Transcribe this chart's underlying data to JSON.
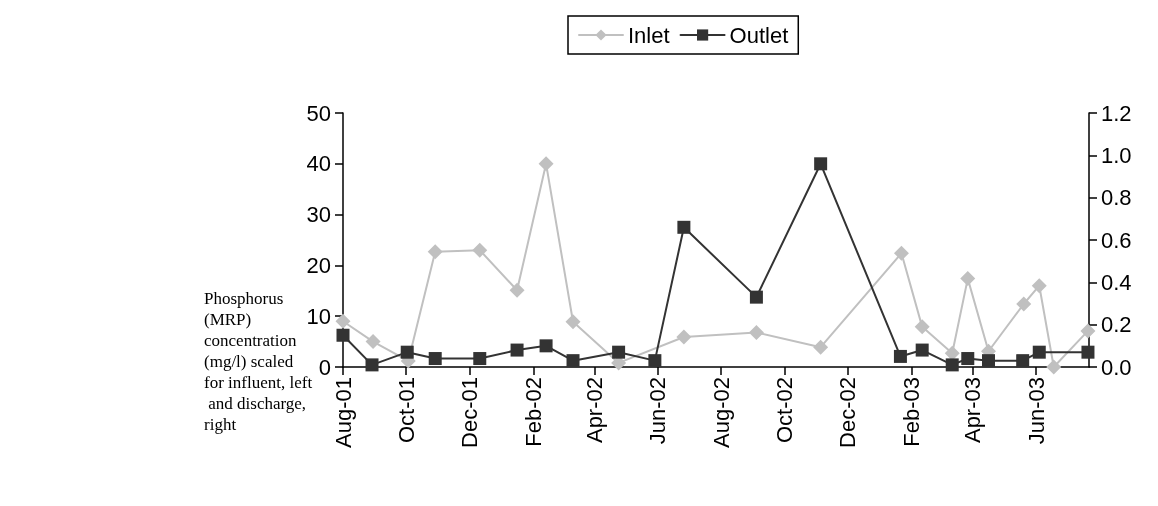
{
  "chart_data": {
    "type": "line",
    "ylabel": "Phosphorus (MRP) concentration (mg/l) scaled for influent, left and discharge, right",
    "xlim": [
      "2001-08-01",
      "2003-07-22"
    ],
    "xticks": [
      {
        "value": "2001-08-01",
        "label": "Aug-01"
      },
      {
        "value": "2001-10-01",
        "label": "Oct-01"
      },
      {
        "value": "2001-12-01",
        "label": "Dec-01"
      },
      {
        "value": "2002-02-01",
        "label": "Feb-02"
      },
      {
        "value": "2002-04-01",
        "label": "Apr-02"
      },
      {
        "value": "2002-06-01",
        "label": "Jun-02"
      },
      {
        "value": "2002-08-01",
        "label": "Aug-02"
      },
      {
        "value": "2002-10-01",
        "label": "Oct-02"
      },
      {
        "value": "2002-12-01",
        "label": "Dec-02"
      },
      {
        "value": "2003-02-01",
        "label": "Feb-03"
      },
      {
        "value": "2003-04-01",
        "label": "Apr-03"
      },
      {
        "value": "2003-06-01",
        "label": "Jun-03"
      }
    ],
    "ylim": [
      0,
      50
    ],
    "yticks": [
      0,
      10,
      20,
      30,
      40,
      50
    ],
    "y2lim": [
      0,
      1.2
    ],
    "y2ticks": [
      {
        "value": 0,
        "label": "0.0"
      },
      {
        "value": 0.2,
        "label": "0.2"
      },
      {
        "value": 0.4,
        "label": "0.4"
      },
      {
        "value": 0.6,
        "label": "0.6"
      },
      {
        "value": 0.8,
        "label": "0.8"
      },
      {
        "value": 1,
        "label": "1.0"
      },
      {
        "value": 1.2,
        "label": "1.2"
      }
    ],
    "grid": false,
    "legend": "top",
    "line_style": "solid",
    "series": [
      {
        "name": "Inlet",
        "color": "#c0c0c0",
        "marker": "diamond",
        "x": [
          "2001-08-01",
          "2001-08-30",
          "2001-10-03",
          "2001-10-29",
          "2001-12-11",
          "2002-01-16",
          "2002-02-13",
          "2002-03-11",
          "2002-04-24",
          "2002-05-29",
          "2002-06-26",
          "2002-09-04",
          "2002-11-05",
          "2003-01-22",
          "2003-02-11",
          "2003-03-12",
          "2003-03-27",
          "2003-04-16",
          "2003-05-20",
          "2003-06-04",
          "2003-06-18",
          "2003-07-21"
        ],
        "values": [
          9,
          5,
          1.2,
          22.7,
          23,
          15.1,
          40,
          8.9,
          0.8,
          null,
          5.9,
          6.8,
          3.9,
          22.4,
          7.9,
          2.7,
          17.4,
          3.1,
          12.4,
          16,
          0,
          7.1
        ]
      },
      {
        "name": "Outlet",
        "color": "#333333",
        "marker": "square",
        "axis": "y2",
        "x": [
          "2001-08-01",
          "2001-08-29",
          "2001-10-02",
          "2001-10-29",
          "2001-12-11",
          "2002-01-16",
          "2002-02-13",
          "2002-03-11",
          "2002-04-24",
          "2002-05-29",
          "2002-06-26",
          "2002-09-04",
          "2002-11-05",
          "2003-01-21",
          "2003-02-11",
          "2003-03-12",
          "2003-03-27",
          "2003-04-16",
          "2003-05-19",
          "2003-06-04",
          "2003-07-21"
        ],
        "values": [
          0.15,
          0.01,
          0.07,
          0.04,
          0.04,
          0.08,
          0.1,
          0.03,
          0.07,
          0.03,
          0.66,
          0.33,
          0.96,
          0.05,
          0.08,
          0.01,
          0.04,
          0.03,
          0.03,
          0.07,
          0.07
        ]
      }
    ]
  }
}
